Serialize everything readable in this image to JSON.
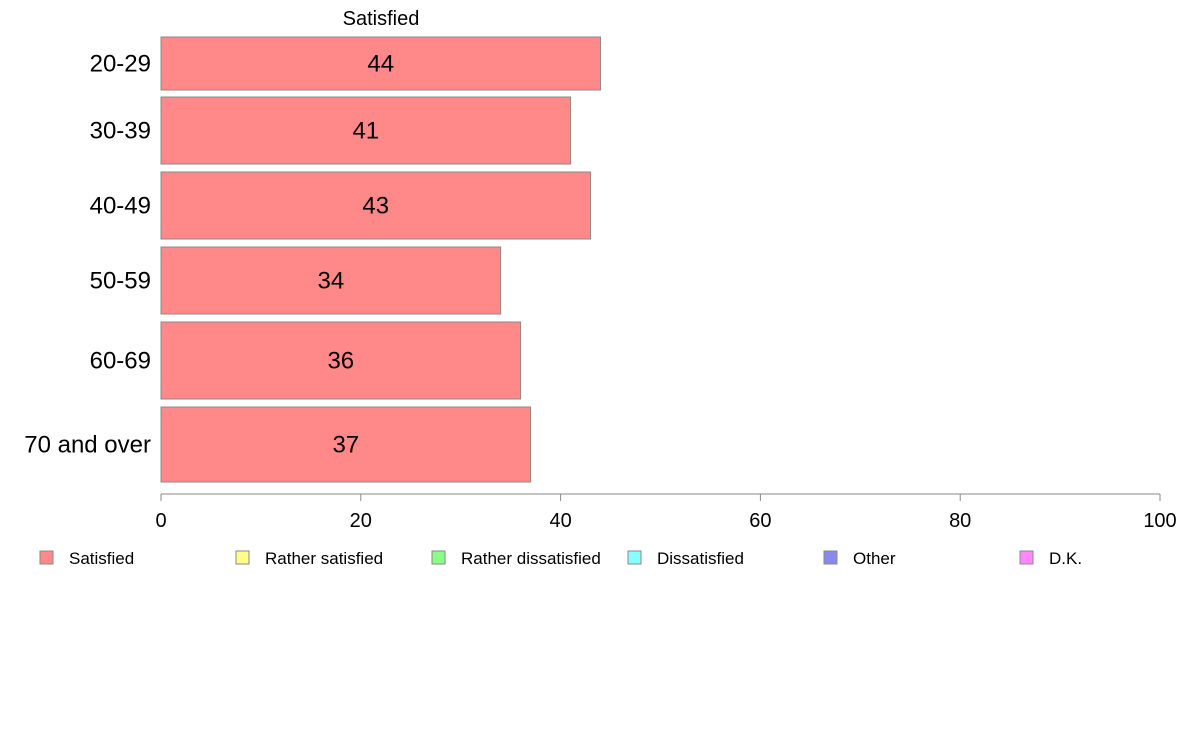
{
  "chart_data": {
    "type": "bar",
    "orientation": "horizontal",
    "title": "Satisfied",
    "categories": [
      "20-29",
      "30-39",
      "40-49",
      "50-59",
      "60-69",
      "70 and over"
    ],
    "series": [
      {
        "name": "Satisfied",
        "values": [
          44,
          41,
          43,
          34,
          36,
          37
        ],
        "color": "#ff8888"
      }
    ],
    "xlim": [
      0,
      100
    ],
    "xticks": [
      "0",
      "20",
      "40",
      "60",
      "80",
      "100"
    ],
    "grid": false,
    "legend": {
      "placement": "bottom",
      "entries": [
        {
          "name": "Satisfied",
          "color": "#ff8888"
        },
        {
          "name": "Rather satisfied",
          "color": "#ffff88"
        },
        {
          "name": "Rather dissatisfied",
          "color": "#88ff88"
        },
        {
          "name": "Dissatisfied",
          "color": "#88ffff"
        },
        {
          "name": "Other",
          "color": "#8888ee"
        },
        {
          "name": "D.K.",
          "color": "#ff88ff"
        }
      ]
    }
  }
}
